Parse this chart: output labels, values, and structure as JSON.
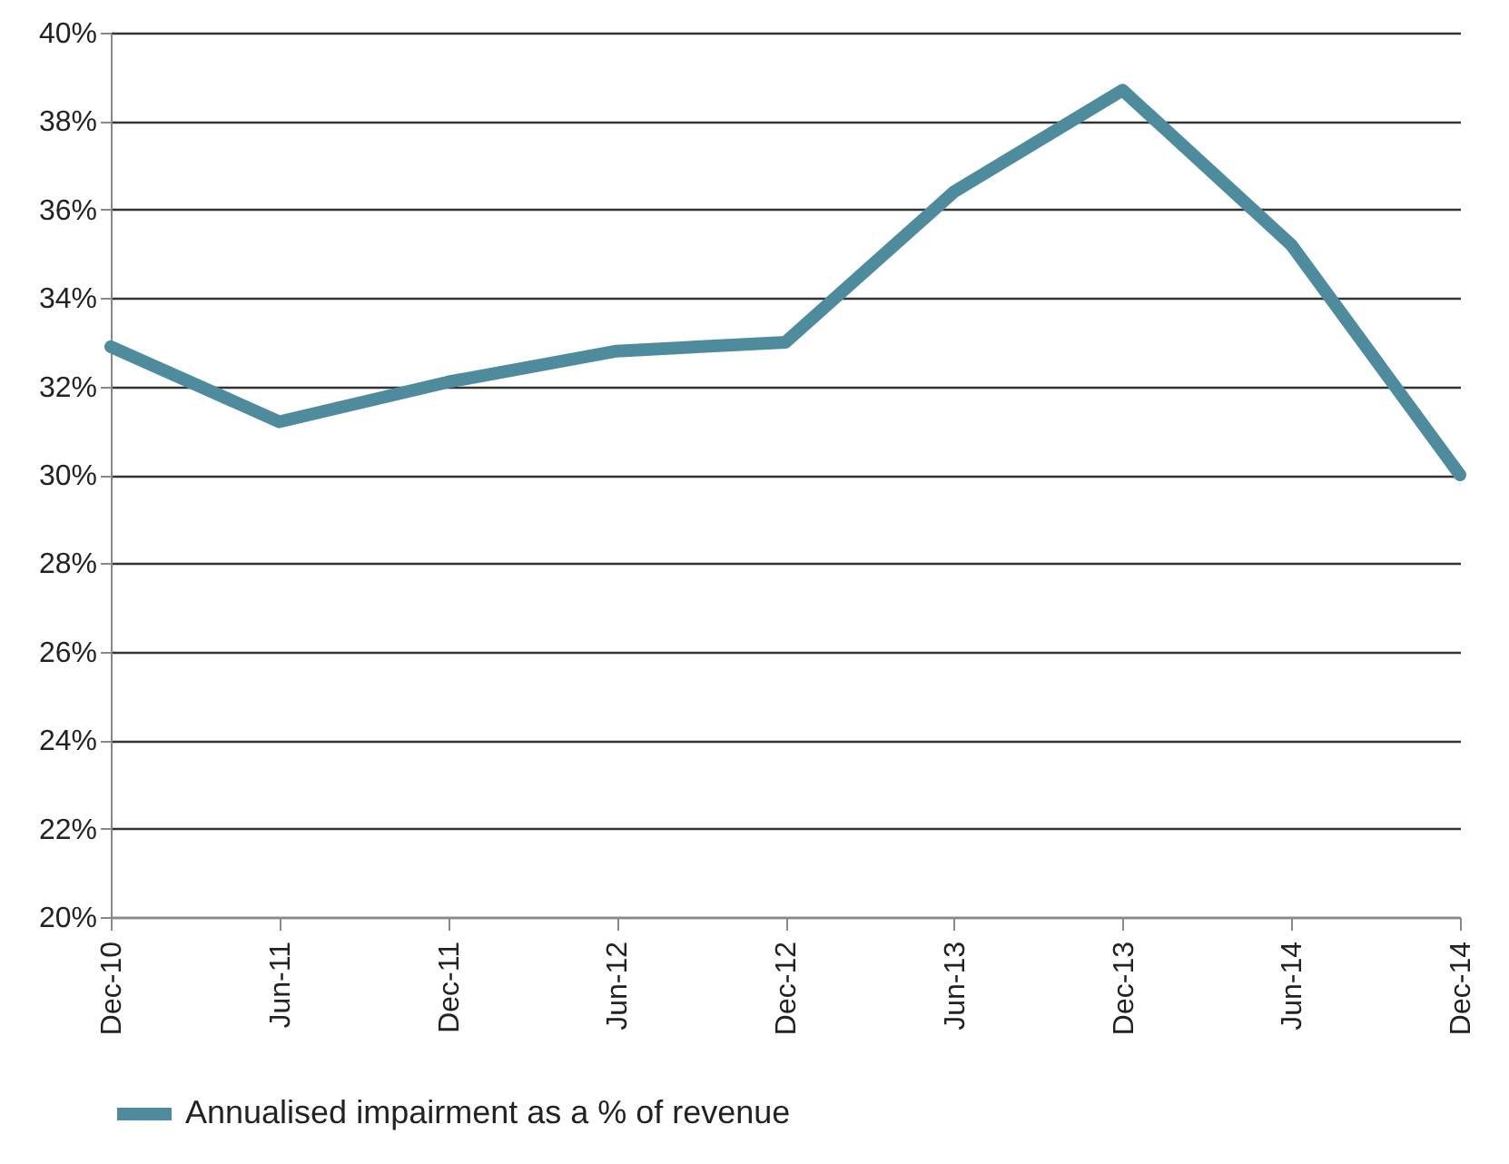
{
  "chart_data": {
    "type": "line",
    "categories": [
      "Dec-10",
      "Jun-11",
      "Dec-11",
      "Jun-12",
      "Dec-12",
      "Jun-13",
      "Dec-13",
      "Jun-14",
      "Dec-14"
    ],
    "series": [
      {
        "name": "Annualised impairment as a % of revenue",
        "color": "#4e8c9d",
        "values": [
          32.9,
          31.2,
          32.1,
          32.8,
          33.0,
          36.4,
          38.7,
          35.2,
          30.0
        ]
      }
    ],
    "ylim": [
      20,
      40
    ],
    "yticks": [
      {
        "value": 20,
        "label": "20%"
      },
      {
        "value": 22,
        "label": "22%"
      },
      {
        "value": 24,
        "label": "24%"
      },
      {
        "value": 26,
        "label": "26%"
      },
      {
        "value": 28,
        "label": "28%"
      },
      {
        "value": 30,
        "label": "30%"
      },
      {
        "value": 32,
        "label": "32%"
      },
      {
        "value": 34,
        "label": "34%"
      },
      {
        "value": 36,
        "label": "36%"
      },
      {
        "value": 38,
        "label": "38%"
      },
      {
        "value": 40,
        "label": "40%"
      }
    ],
    "grid": "y",
    "legend": "bottom",
    "marker": "none",
    "line_style": "solid"
  }
}
